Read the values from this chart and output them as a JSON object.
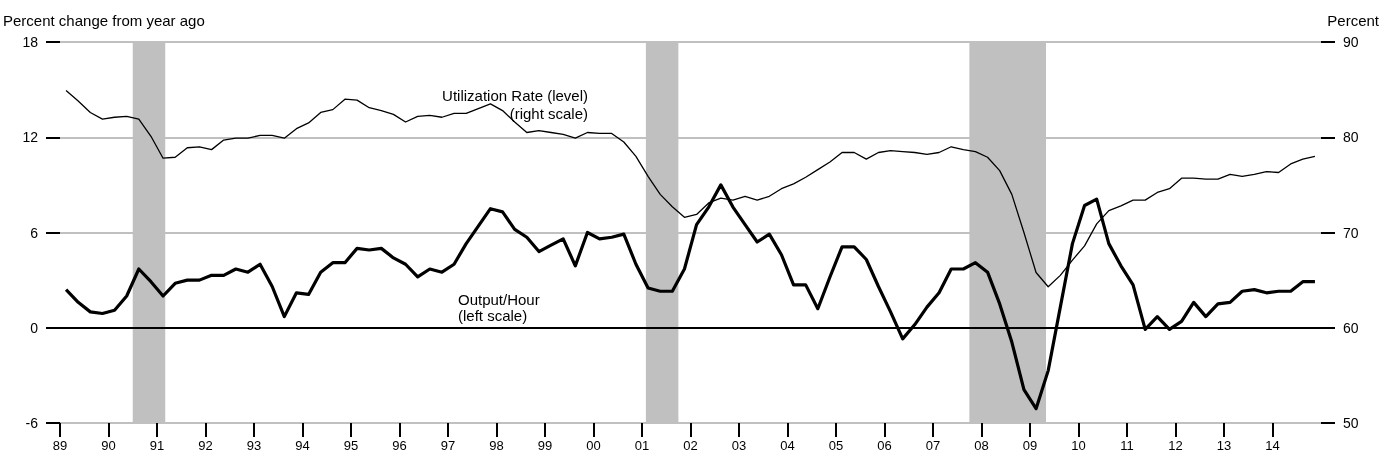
{
  "chart_data": {
    "type": "line",
    "ylabel": "Percent change from year ago",
    "y2label": "Percent",
    "annotations": [
      "Utilization Rate (level)",
      "(right scale)",
      "Output/Hour",
      "(left scale)"
    ],
    "x": [
      1989.125,
      1989.375,
      1989.625,
      1989.875,
      1990.125,
      1990.375,
      1990.625,
      1990.875,
      1991.125,
      1991.375,
      1991.625,
      1991.875,
      1992.125,
      1992.375,
      1992.625,
      1992.875,
      1993.125,
      1993.375,
      1993.625,
      1993.875,
      1994.125,
      1994.375,
      1994.625,
      1994.875,
      1995.125,
      1995.375,
      1995.625,
      1995.875,
      1996.125,
      1996.375,
      1996.625,
      1996.875,
      1997.125,
      1997.375,
      1997.625,
      1997.875,
      1998.125,
      1998.375,
      1998.625,
      1998.875,
      1999.125,
      1999.375,
      1999.625,
      1999.875,
      2000.125,
      2000.375,
      2000.625,
      2000.875,
      2001.125,
      2001.375,
      2001.625,
      2001.875,
      2002.125,
      2002.375,
      2002.625,
      2002.875,
      2003.125,
      2003.375,
      2003.625,
      2003.875,
      2004.125,
      2004.375,
      2004.625,
      2004.875,
      2005.125,
      2005.375,
      2005.625,
      2005.875,
      2006.125,
      2006.375,
      2006.625,
      2006.875,
      2007.125,
      2007.375,
      2007.625,
      2007.875,
      2008.125,
      2008.375,
      2008.625,
      2008.875,
      2009.125,
      2009.375,
      2009.625,
      2009.875,
      2010.125,
      2010.375,
      2010.625,
      2010.875,
      2011.125,
      2011.375,
      2011.625,
      2011.875,
      2012.125,
      2012.375,
      2012.625,
      2012.875,
      2013.125,
      2013.375,
      2013.625,
      2013.875,
      2014.125,
      2014.375,
      2014.625,
      2014.875
    ],
    "series": [
      {
        "color": "#000000",
        "values": [
          2.4,
          1.6,
          1.0,
          0.9,
          1.1,
          2.0,
          3.7,
          2.9,
          2.0,
          2.8,
          3.0,
          3.0,
          3.3,
          3.3,
          3.7,
          3.5,
          4.0,
          2.6,
          0.7,
          2.2,
          2.1,
          3.5,
          4.1,
          4.1,
          5.0,
          4.9,
          5.0,
          4.4,
          4.0,
          3.2,
          3.7,
          3.5,
          4.0,
          5.3,
          6.4,
          7.5,
          7.3,
          6.2,
          5.7,
          4.8,
          5.2,
          5.6,
          3.9,
          6.0,
          5.6,
          5.7,
          5.9,
          4.0,
          2.5,
          2.3,
          2.3,
          3.7,
          6.5,
          7.6,
          9.0,
          7.6,
          6.5,
          5.4,
          5.9,
          4.6,
          2.7,
          2.7,
          1.2,
          3.2,
          5.1,
          5.1,
          4.3,
          2.6,
          1.0,
          -0.7,
          0.2,
          1.3,
          2.2,
          3.7,
          3.7,
          4.1,
          3.5,
          1.5,
          -0.9,
          -3.9,
          -5.1,
          -2.7,
          1.3,
          5.3,
          7.7,
          8.1,
          5.3,
          3.9,
          2.7,
          -0.1,
          0.7,
          -0.1,
          0.4,
          1.6,
          0.7,
          1.5,
          1.6,
          2.3,
          2.4,
          2.2,
          2.3,
          2.3,
          2.9,
          2.9
        ]
      },
      {
        "color": "#000000",
        "axis": "y2",
        "values": [
          84.9,
          83.8,
          82.6,
          81.9,
          82.1,
          82.2,
          81.9,
          80.1,
          77.8,
          77.9,
          78.9,
          79.0,
          78.7,
          79.7,
          79.9,
          79.9,
          80.2,
          80.2,
          79.9,
          80.9,
          81.5,
          82.6,
          82.9,
          84.0,
          83.9,
          83.1,
          82.8,
          82.4,
          81.6,
          82.2,
          82.3,
          82.1,
          82.5,
          82.5,
          83.0,
          83.5,
          82.8,
          81.6,
          80.5,
          80.7,
          80.5,
          80.3,
          79.9,
          80.5,
          80.4,
          80.4,
          79.5,
          78.0,
          75.9,
          74.0,
          72.7,
          71.6,
          71.9,
          73.1,
          73.6,
          73.4,
          73.8,
          73.4,
          73.8,
          74.6,
          75.1,
          75.8,
          76.6,
          77.4,
          78.4,
          78.4,
          77.7,
          78.4,
          78.6,
          78.5,
          78.4,
          78.2,
          78.4,
          79.0,
          78.7,
          78.5,
          77.9,
          76.5,
          74.0,
          70.0,
          65.8,
          64.3,
          65.5,
          67.1,
          68.6,
          70.9,
          72.3,
          72.8,
          73.4,
          73.4,
          74.2,
          74.6,
          75.7,
          75.7,
          75.6,
          75.6,
          76.1,
          75.9,
          76.1,
          76.4,
          76.3,
          77.2,
          77.7,
          78.0
        ]
      }
    ],
    "xlim": [
      1989,
      2015
    ],
    "xticks": [
      {
        "value": 1989,
        "label": "89"
      },
      {
        "value": 1990,
        "label": "90"
      },
      {
        "value": 1991,
        "label": "91"
      },
      {
        "value": 1992,
        "label": "92"
      },
      {
        "value": 1993,
        "label": "93"
      },
      {
        "value": 1994,
        "label": "94"
      },
      {
        "value": 1995,
        "label": "95"
      },
      {
        "value": 1996,
        "label": "96"
      },
      {
        "value": 1997,
        "label": "97"
      },
      {
        "value": 1998,
        "label": "98"
      },
      {
        "value": 1999,
        "label": "99"
      },
      {
        "value": 2000,
        "label": "00"
      },
      {
        "value": 2001,
        "label": "01"
      },
      {
        "value": 2002,
        "label": "02"
      },
      {
        "value": 2003,
        "label": "03"
      },
      {
        "value": 2004,
        "label": "04"
      },
      {
        "value": 2005,
        "label": "05"
      },
      {
        "value": 2006,
        "label": "06"
      },
      {
        "value": 2007,
        "label": "07"
      },
      {
        "value": 2008,
        "label": "08"
      },
      {
        "value": 2009,
        "label": "09"
      },
      {
        "value": 2010,
        "label": "10"
      },
      {
        "value": 2011,
        "label": "11"
      },
      {
        "value": 2012,
        "label": "12"
      },
      {
        "value": 2013,
        "label": "13"
      },
      {
        "value": 2014,
        "label": "14"
      }
    ],
    "ylim": [
      -6,
      18
    ],
    "yticks": [
      -6,
      0,
      6,
      12,
      18
    ],
    "y2lim": [
      50,
      90
    ],
    "y2ticks": [
      50,
      60,
      70,
      80,
      90
    ],
    "ref_lines": [
      {
        "axis": "y",
        "value": 0,
        "color": "#000000"
      }
    ],
    "bands": [
      {
        "axis": "x",
        "from": 1990.5,
        "to": 1991.17,
        "color": "#c0c0c0"
      },
      {
        "axis": "x",
        "from": 2001.08,
        "to": 2001.75,
        "color": "#c0c0c0"
      },
      {
        "axis": "x",
        "from": 2007.75,
        "to": 2009.33,
        "color": "#c0c0c0"
      }
    ],
    "grid": "y",
    "marker": "none",
    "line_style": "solid"
  }
}
